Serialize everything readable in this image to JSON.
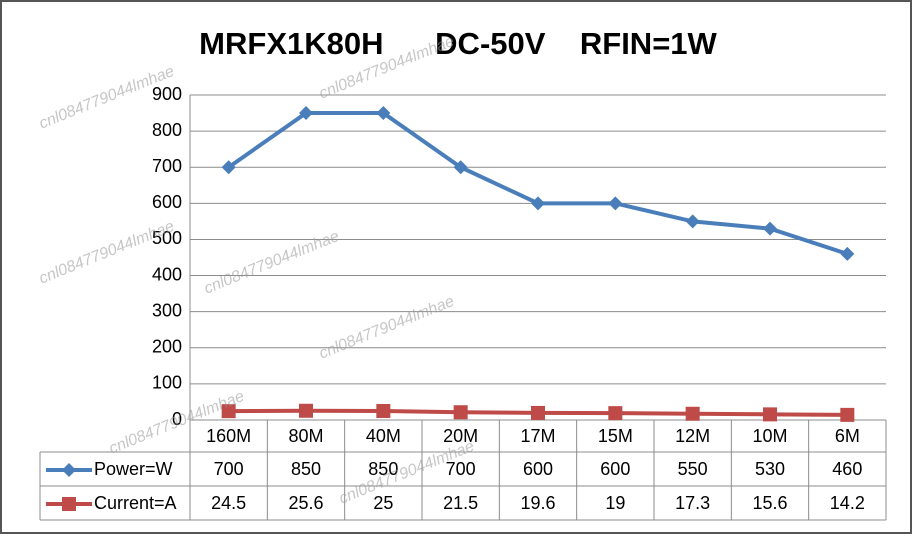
{
  "chart_data": {
    "type": "line",
    "title": "MRFX1K80H      DC-50V    RFIN=1W",
    "watermark": "cnl084779044lmhae",
    "categories": [
      "160M",
      "80M",
      "40M",
      "20M",
      "17M",
      "15M",
      "12M",
      "10M",
      "6M"
    ],
    "series": [
      {
        "name": "Power=W",
        "color": "#4a7ebb",
        "marker": "diamond",
        "values": [
          700,
          850,
          850,
          700,
          600,
          600,
          550,
          530,
          460
        ]
      },
      {
        "name": "Current=A",
        "color": "#be4b48",
        "marker": "square",
        "values": [
          24.5,
          25.6,
          25,
          21.5,
          19.6,
          19,
          17.3,
          15.6,
          14.2
        ]
      }
    ],
    "ylim": [
      0,
      900
    ],
    "yticks": [
      0,
      100,
      200,
      300,
      400,
      500,
      600,
      700,
      800,
      900
    ],
    "grid": true
  }
}
